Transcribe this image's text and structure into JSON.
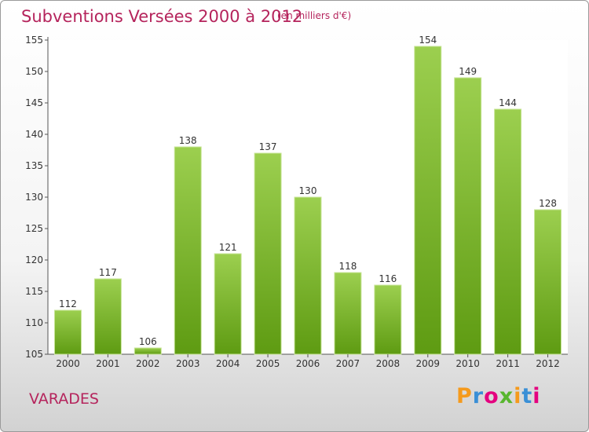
{
  "header": {
    "title": "Subventions Versées 2000 à 2012",
    "unit": "(en milliers d'€)"
  },
  "footer": {
    "place": "VARADES",
    "logo": "Proxiti"
  },
  "colors": {
    "accent": "#b5245c",
    "bar_top": "#9ccf4f",
    "bar_bottom": "#5e9b12"
  },
  "chart_data": {
    "type": "bar",
    "title": "Subventions Versées 2000 à 2012",
    "subtitle": "(en milliers d'€)",
    "xlabel": "",
    "ylabel": "",
    "categories": [
      "2000",
      "2001",
      "2002",
      "2003",
      "2004",
      "2005",
      "2006",
      "2007",
      "2008",
      "2009",
      "2010",
      "2011",
      "2012"
    ],
    "values": [
      112,
      117,
      106,
      138,
      121,
      137,
      130,
      118,
      116,
      154,
      149,
      144,
      128
    ],
    "ylim": [
      105,
      155
    ],
    "yticks": [
      105,
      110,
      115,
      120,
      125,
      130,
      135,
      140,
      145,
      150,
      155
    ],
    "grid": false,
    "legend": "none"
  }
}
